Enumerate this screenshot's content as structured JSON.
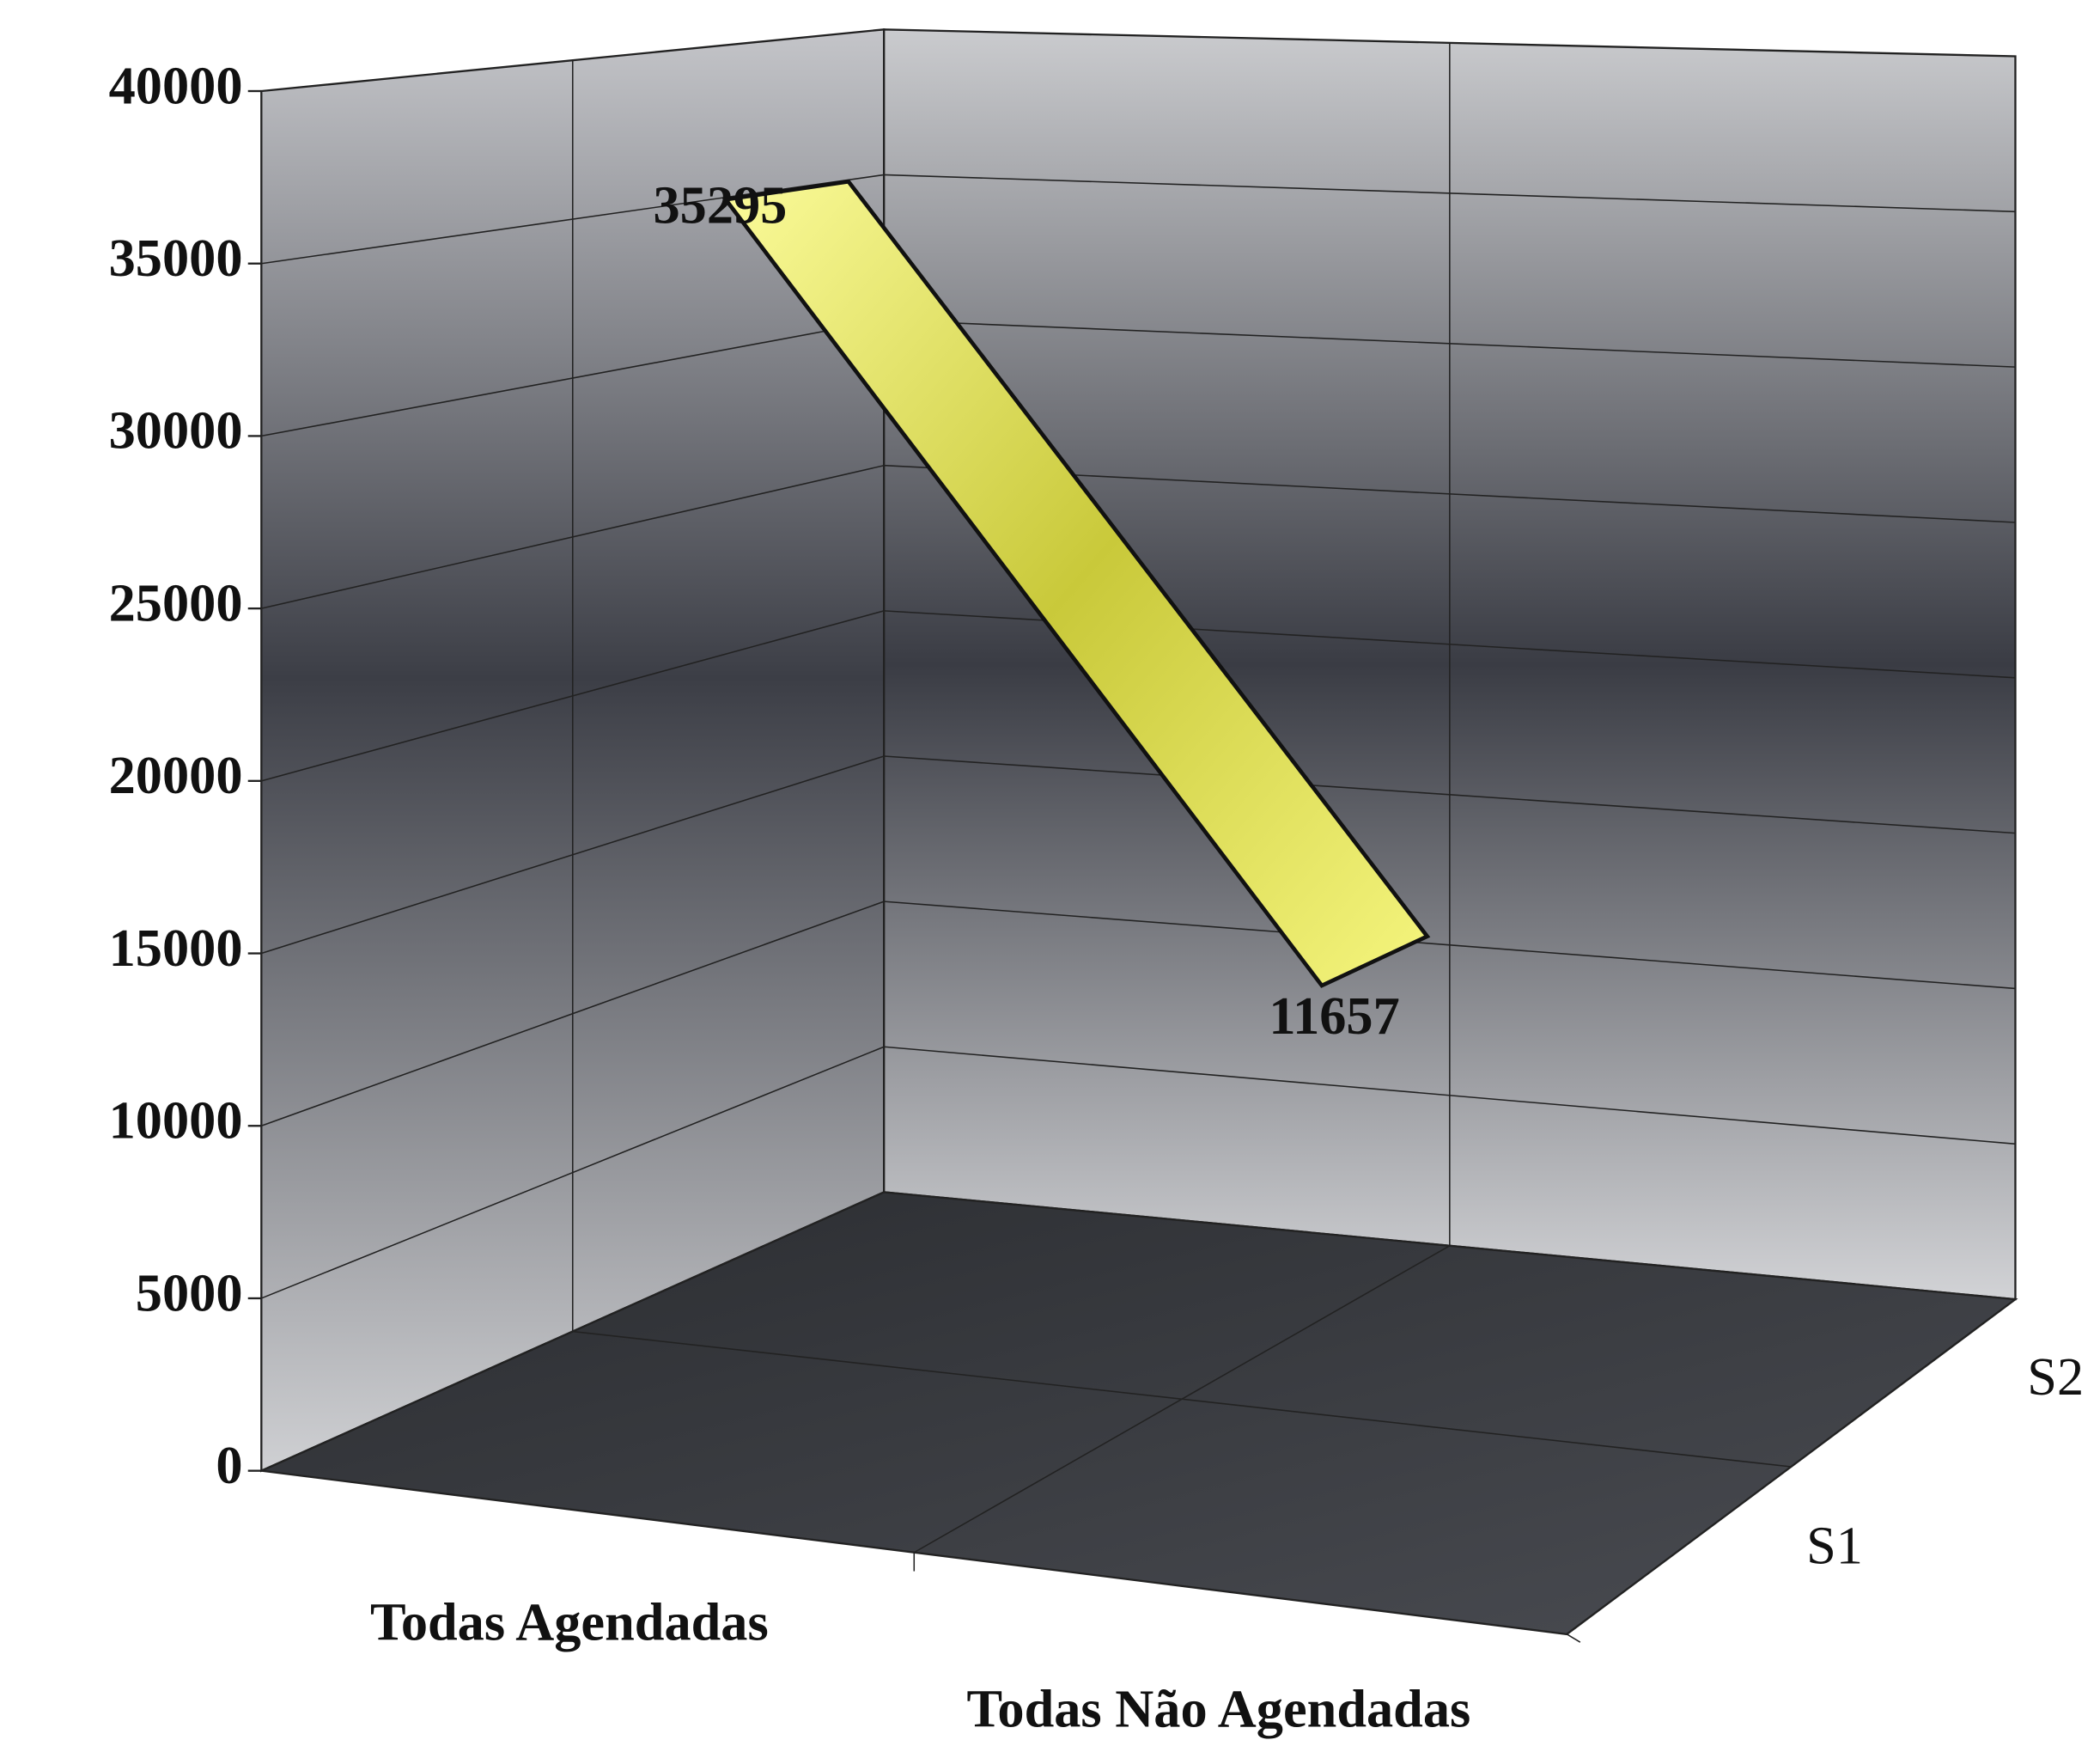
{
  "chart_data": {
    "type": "line3d",
    "categories": [
      "Todas Agendadas",
      "Todas Não Agendadas"
    ],
    "series": [
      {
        "name": "S1",
        "values": [
          null,
          null
        ]
      },
      {
        "name": "S2",
        "color": "#f2f27a",
        "values": [
          35295,
          11657
        ]
      }
    ],
    "ylim": [
      0,
      40000
    ],
    "yticks": [
      0,
      5000,
      10000,
      15000,
      20000,
      25000,
      30000,
      35000,
      40000
    ],
    "grid": true
  }
}
